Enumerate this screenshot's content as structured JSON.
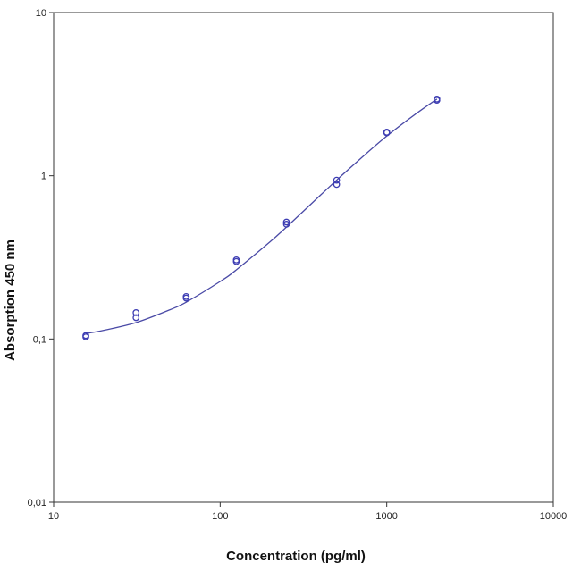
{
  "chart_data": {
    "type": "scatter",
    "title": "",
    "xlabel": "Concentration (pg/ml)",
    "ylabel": "Absorption 450 nm",
    "x_scale": "log",
    "y_scale": "log",
    "xlim": [
      10,
      10000
    ],
    "ylim": [
      0.01,
      10
    ],
    "x_ticks": [
      10,
      100,
      1000,
      10000
    ],
    "x_tick_labels": [
      "10",
      "100",
      "1000",
      "10000"
    ],
    "y_ticks": [
      0.01,
      0.1,
      1,
      10
    ],
    "y_tick_labels": [
      "0,01",
      "0,1",
      "1",
      "10"
    ],
    "grid": false,
    "legend": false,
    "series": [
      {
        "kind": "points",
        "x": [
          15.6,
          15.6,
          31.25,
          31.25,
          62.5,
          62.5,
          125,
          125,
          250,
          250,
          500,
          500,
          1000,
          1000,
          2000,
          2000
        ],
        "y": [
          0.105,
          0.103,
          0.145,
          0.135,
          0.182,
          0.178,
          0.305,
          0.298,
          0.52,
          0.505,
          0.94,
          0.885,
          1.85,
          1.83,
          2.95,
          2.9
        ]
      },
      {
        "kind": "fit-curve",
        "x": [
          15.6,
          20,
          31.25,
          50,
          62.5,
          100,
          125,
          200,
          250,
          400,
          500,
          700,
          1000,
          1500,
          2000
        ],
        "y": [
          0.108,
          0.113,
          0.126,
          0.151,
          0.168,
          0.225,
          0.265,
          0.395,
          0.485,
          0.76,
          0.94,
          1.28,
          1.75,
          2.4,
          2.95
        ]
      }
    ],
    "colors": {
      "points": "#3d3db3",
      "curve": "#4a4aa6",
      "axis": "#333333"
    }
  }
}
